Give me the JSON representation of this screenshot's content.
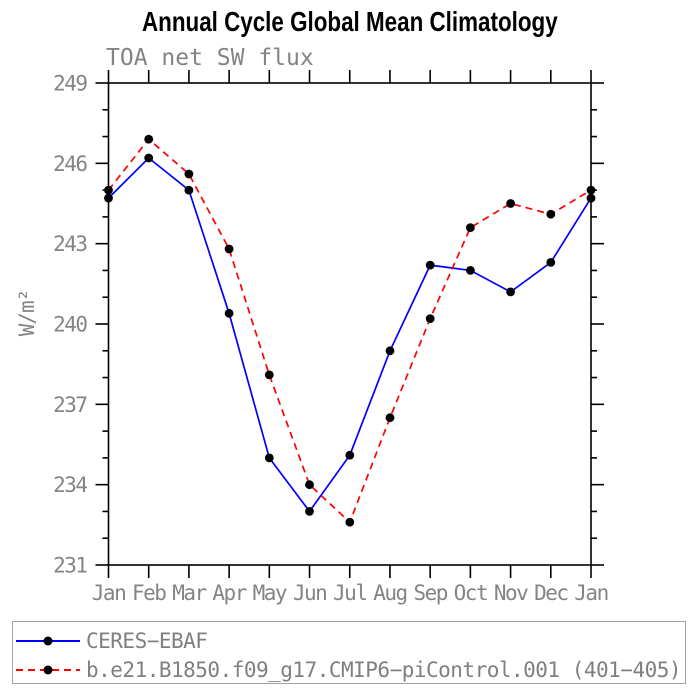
{
  "header": {
    "title": "Annual Cycle Global Mean Climatology"
  },
  "chart_data": {
    "type": "line",
    "title": "Annual Cycle Global Mean Climatology",
    "subtitle": "TOA net SW flux",
    "xlabel": "",
    "ylabel": "W/m²",
    "categories": [
      "Jan",
      "Feb",
      "Mar",
      "Apr",
      "May",
      "Jun",
      "Jul",
      "Aug",
      "Sep",
      "Oct",
      "Nov",
      "Dec",
      "Jan"
    ],
    "ylim": [
      231,
      249
    ],
    "y_major_ticks": [
      249,
      246,
      243,
      240,
      237,
      234,
      231
    ],
    "y_minor_step": 1,
    "grid": false,
    "frame": "box-with-outward-ticks",
    "legend_position": "bottom-box",
    "series": [
      {
        "name": "CERES−EBAF",
        "color": "#0000ff",
        "line_style": "solid",
        "marker": "filled-circle",
        "marker_color": "#000000",
        "values": [
          244.7,
          246.2,
          245.0,
          240.4,
          235.0,
          233.0,
          235.1,
          239.0,
          242.2,
          242.0,
          241.2,
          242.3,
          244.7
        ]
      },
      {
        "name": "b.e21.B1850.f09_g17.CMIP6−piControl.001 (401−405)",
        "color": "#ff0000",
        "line_style": "dashed",
        "marker": "filled-circle",
        "marker_color": "#000000",
        "values": [
          245.0,
          246.9,
          245.6,
          242.8,
          238.1,
          234.0,
          232.6,
          236.5,
          240.2,
          243.6,
          244.5,
          244.1,
          245.0
        ]
      }
    ]
  },
  "colors": {
    "axis": "#000000",
    "label_gray": "#848484",
    "legend_text_gray": "#7f7f7f",
    "legend_border": "#a3a3a3",
    "background": "#ffffff"
  }
}
